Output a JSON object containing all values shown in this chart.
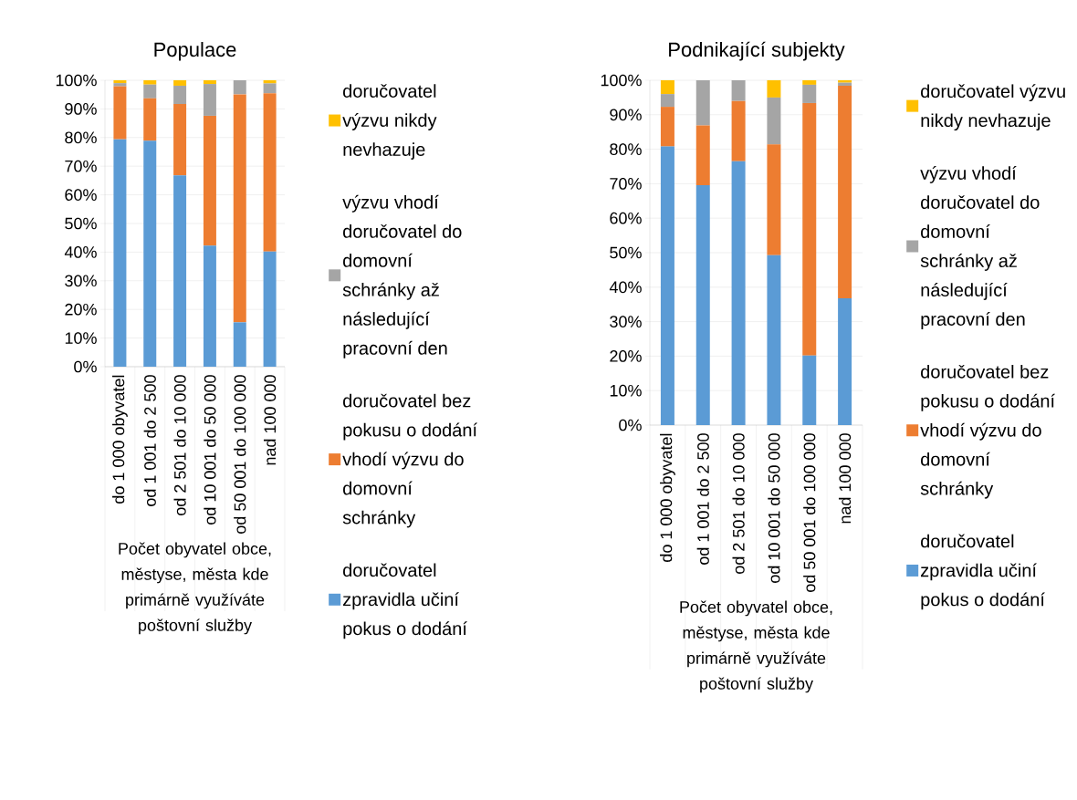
{
  "chart_data": [
    {
      "type": "bar",
      "stacked": true,
      "title": "Populace",
      "xlabel": "Počet obyvatel obce, městyse, města kde primárně využíváte poštovní služby",
      "categories": [
        "do 1 000 obyvatel",
        "od 1 001 do 2 500",
        "od 2 501 do 10 000",
        "od 10 001 do 50 000",
        "od 50 001 do 100 000",
        "nad 100 000"
      ],
      "series": [
        {
          "name": "doručovatel zpravidla učiní pokus o dodání",
          "color": "#5b9bd5",
          "values": [
            79.4,
            78.9,
            66.8,
            42.3,
            15.5,
            40.2
          ]
        },
        {
          "name": "doručovatel bez pokusu o dodání vhodí výzvu do domovní schránky",
          "color": "#ed7d31",
          "values": [
            18.5,
            14.8,
            24.9,
            45.3,
            79.6,
            55.3
          ]
        },
        {
          "name": "výzvu vhodí doručovatel do domovní schránky až následující pracovní den",
          "color": "#a5a5a5",
          "values": [
            1.1,
            4.8,
            6.4,
            11.1,
            4.9,
            3.4
          ]
        },
        {
          "name": "doručovatel výzvu nikdy nevhazuje",
          "color": "#ffc000",
          "values": [
            1.0,
            1.5,
            1.9,
            1.3,
            0,
            1.1
          ]
        }
      ],
      "ylim": [
        0,
        100
      ],
      "yticks": [
        {
          "value": 0,
          "label": "0%"
        },
        {
          "value": 10,
          "label": "10%"
        },
        {
          "value": 20,
          "label": "20%"
        },
        {
          "value": 30,
          "label": "30%"
        },
        {
          "value": 40,
          "label": "40%"
        },
        {
          "value": 50,
          "label": "50%"
        },
        {
          "value": 60,
          "label": "60%"
        },
        {
          "value": 70,
          "label": "70%"
        },
        {
          "value": 80,
          "label": "80%"
        },
        {
          "value": 90,
          "label": "90%"
        },
        {
          "value": 100,
          "label": "100%"
        }
      ],
      "grid": "y",
      "legend": "right"
    },
    {
      "type": "bar",
      "stacked": true,
      "title": "Podnikající subjekty",
      "xlabel": "Počet obyvatel obce, městyse, města kde primárně využíváte poštovní služby",
      "categories": [
        "do 1 000 obyvatel",
        "od 1 001 do 2 500",
        "od 2 501 do 10 000",
        "od 10 001 do 50 000",
        "od 50 001 do 100 000",
        "nad 100 000"
      ],
      "series": [
        {
          "name": "doručovatel zpravidla učiní pokus o dodání",
          "color": "#5b9bd5",
          "values": [
            80.8,
            69.6,
            76.5,
            49.3,
            20.2,
            36.8
          ]
        },
        {
          "name": "doručovatel bez pokusu o dodání vhodí výzvu do domovní schránky",
          "color": "#ed7d31",
          "values": [
            11.5,
            17.3,
            17.5,
            32.1,
            73.2,
            61.6
          ]
        },
        {
          "name": "výzvu vhodí doručovatel do domovní schránky až následující pracovní den",
          "color": "#a5a5a5",
          "values": [
            3.7,
            13.1,
            6.0,
            13.6,
            5.3,
            0.9
          ]
        },
        {
          "name": "doručovatel výzvu nikdy nevhazuje",
          "color": "#ffc000",
          "values": [
            4.0,
            0,
            0,
            5.0,
            1.3,
            0.7
          ]
        }
      ],
      "ylim": [
        0,
        100
      ],
      "yticks": [
        {
          "value": 0,
          "label": "0%"
        },
        {
          "value": 10,
          "label": "10%"
        },
        {
          "value": 20,
          "label": "20%"
        },
        {
          "value": 30,
          "label": "30%"
        },
        {
          "value": 40,
          "label": "40%"
        },
        {
          "value": 50,
          "label": "50%"
        },
        {
          "value": 60,
          "label": "60%"
        },
        {
          "value": 70,
          "label": "70%"
        },
        {
          "value": 80,
          "label": "80%"
        },
        {
          "value": 90,
          "label": "90%"
        },
        {
          "value": 100,
          "label": "100%"
        }
      ],
      "grid": "y",
      "legend": "right"
    }
  ]
}
